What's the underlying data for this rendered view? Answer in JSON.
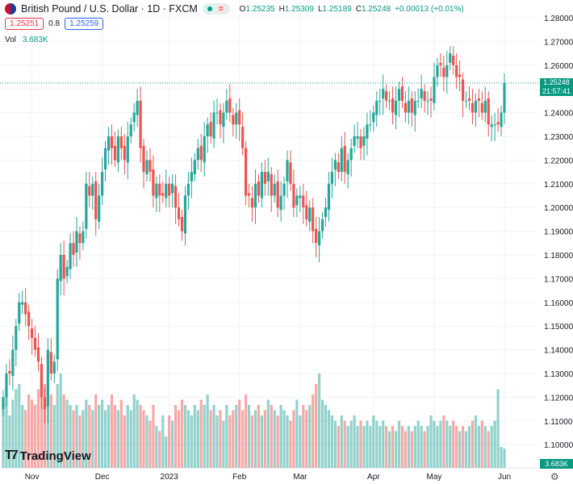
{
  "header": {
    "symbol": "British Pound / U.S. Dollar · 1D · FXCM",
    "o_label": "O",
    "o": "1.25235",
    "h_label": "H",
    "h": "1.25309",
    "l_label": "L",
    "l": "1.25189",
    "c_label": "C",
    "c": "1.25248",
    "change": "+0.00013 (+0.01%)",
    "eq": "="
  },
  "trade": {
    "sell": "1.25251",
    "spread": "0.8",
    "buy": "1.25259"
  },
  "volume": {
    "label": "Vol",
    "value": "3.683K"
  },
  "price_tag": {
    "price": "1.25248",
    "countdown": "21:57:41"
  },
  "volume_tag": "3.683K",
  "brand": "TradingView",
  "colors": {
    "up": "#26a69a",
    "down": "#ef5350"
  },
  "chart_data": {
    "type": "candlestick",
    "title": "British Pound / U.S. Dollar · 1D · FXCM",
    "ylim": [
      1.095,
      1.285
    ],
    "y_ticks": [
      "1.28000",
      "1.27000",
      "1.26000",
      "1.25000",
      "1.24000",
      "1.23000",
      "1.22000",
      "1.21000",
      "1.20000",
      "1.19000",
      "1.18000",
      "1.17000",
      "1.16000",
      "1.15000",
      "1.14000",
      "1.13000",
      "1.12000",
      "1.11000",
      "1.10000"
    ],
    "x_ticks": [
      {
        "label": "Nov",
        "index": 9
      },
      {
        "label": "Dec",
        "index": 31
      },
      {
        "label": "2023",
        "index": 52
      },
      {
        "label": "Feb",
        "index": 74
      },
      {
        "label": "Mar",
        "index": 93
      },
      {
        "label": "Apr",
        "index": 116
      },
      {
        "label": "May",
        "index": 135
      },
      {
        "label": "Jun",
        "index": 157
      }
    ],
    "close": [
      1.12,
      1.13,
      1.13,
      1.14,
      1.15,
      1.16,
      1.16,
      1.155,
      1.15,
      1.145,
      1.14,
      1.135,
      1.12,
      1.115,
      1.14,
      1.13,
      1.135,
      1.17,
      1.18,
      1.17,
      1.175,
      1.185,
      1.18,
      1.19,
      1.185,
      1.19,
      1.21,
      1.205,
      1.21,
      1.195,
      1.205,
      1.215,
      1.225,
      1.23,
      1.225,
      1.22,
      1.23,
      1.225,
      1.22,
      1.23,
      1.235,
      1.24,
      1.245,
      1.225,
      1.215,
      1.22,
      1.215,
      1.205,
      1.21,
      1.205,
      1.205,
      1.21,
      1.205,
      1.21,
      1.2,
      1.195,
      1.19,
      1.205,
      1.21,
      1.215,
      1.22,
      1.225,
      1.22,
      1.23,
      1.235,
      1.23,
      1.24,
      1.24,
      1.235,
      1.24,
      1.245,
      1.24,
      1.235,
      1.24,
      1.235,
      1.225,
      1.205,
      1.205,
      1.2,
      1.21,
      1.205,
      1.215,
      1.21,
      1.215,
      1.205,
      1.21,
      1.2,
      1.205,
      1.21,
      1.22,
      1.21,
      1.2,
      1.205,
      1.205,
      1.2,
      1.195,
      1.2,
      1.19,
      1.185,
      1.19,
      1.195,
      1.2,
      1.21,
      1.215,
      1.22,
      1.215,
      1.225,
      1.215,
      1.22,
      1.225,
      1.23,
      1.23,
      1.225,
      1.23,
      1.235,
      1.235,
      1.24,
      1.245,
      1.245,
      1.25,
      1.245,
      1.245,
      1.24,
      1.245,
      1.25,
      1.245,
      1.24,
      1.245,
      1.24,
      1.245,
      1.245,
      1.25,
      1.245,
      1.245,
      1.245,
      1.255,
      1.26,
      1.26,
      1.255,
      1.26,
      1.265,
      1.26,
      1.255,
      1.255,
      1.245,
      1.245,
      1.245,
      1.24,
      1.245,
      1.245,
      1.24,
      1.245,
      1.235,
      1.235,
      1.235,
      1.235,
      1.24,
      1.2525
    ],
    "volume_k": [
      12,
      14,
      10,
      13,
      15,
      16,
      12,
      11,
      14,
      13,
      12,
      15,
      18,
      16,
      17,
      14,
      12,
      16,
      18,
      14,
      13,
      12,
      11,
      12,
      10,
      11,
      13,
      12,
      11,
      14,
      12,
      13,
      11,
      12,
      14,
      12,
      11,
      13,
      10,
      12,
      11,
      14,
      13,
      12,
      11,
      10,
      9,
      12,
      8,
      7,
      10,
      6,
      10,
      9,
      12,
      11,
      13,
      12,
      11,
      10,
      12,
      11,
      13,
      12,
      14,
      11,
      12,
      10,
      11,
      9,
      12,
      10,
      11,
      12,
      13,
      11,
      14,
      12,
      10,
      11,
      12,
      10,
      11,
      13,
      12,
      11,
      10,
      12,
      11,
      10,
      9,
      11,
      13,
      10,
      12,
      11,
      12,
      14,
      16,
      18,
      13,
      12,
      11,
      10,
      9,
      8,
      10,
      9,
      8,
      9,
      10,
      8,
      9,
      8,
      9,
      8,
      10,
      9,
      8,
      9,
      8,
      7,
      8,
      7,
      9,
      8,
      7,
      8,
      7,
      8,
      9,
      8,
      7,
      8,
      10,
      9,
      8,
      9,
      10,
      9,
      8,
      9,
      8,
      7,
      8,
      7,
      8,
      9,
      10,
      8,
      9,
      8,
      7,
      8,
      9,
      15,
      4,
      3.683
    ]
  }
}
